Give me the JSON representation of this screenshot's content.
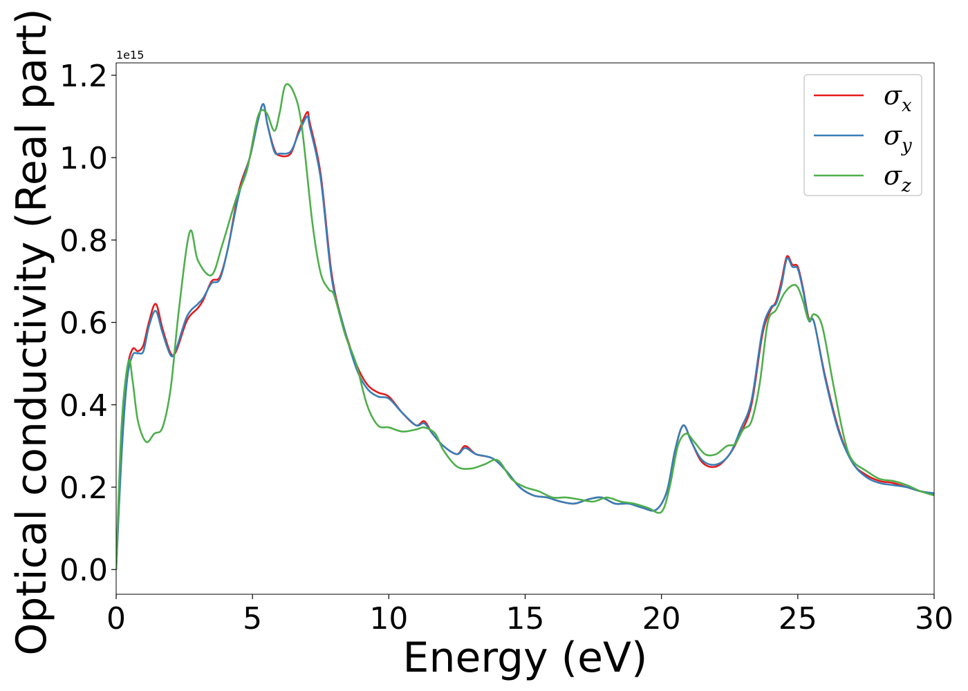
{
  "chart_data": {
    "type": "line",
    "title": "",
    "xlabel": "Energy (eV)",
    "ylabel": "Optical conductivity (Real part)",
    "y_offset_label": "1e15",
    "xlim": [
      0,
      30
    ],
    "ylim": [
      -0.06,
      1.23
    ],
    "xticks": [
      0,
      5,
      10,
      15,
      20,
      25,
      30
    ],
    "xtick_labels": [
      "0",
      "5",
      "10",
      "15",
      "20",
      "25",
      "30"
    ],
    "yticks": [
      0.0,
      0.2,
      0.4,
      0.6,
      0.8,
      1.0,
      1.2
    ],
    "ytick_labels": [
      "0.0",
      "0.2",
      "0.4",
      "0.6",
      "0.8",
      "1.0",
      "1.2"
    ],
    "grid": false,
    "legend_position": "top-right",
    "series": [
      {
        "name": "σ",
        "subscript": "x",
        "color": "#e41a1c",
        "x": [
          0,
          0.2,
          0.4,
          0.6,
          0.8,
          1.0,
          1.2,
          1.45,
          1.7,
          2.0,
          2.2,
          2.6,
          3.0,
          3.2,
          3.5,
          3.8,
          4.1,
          4.5,
          4.9,
          5.2,
          5.4,
          5.55,
          5.8,
          6.0,
          6.4,
          6.7,
          7.0,
          7.1,
          7.5,
          7.9,
          8.3,
          8.8,
          9.2,
          9.6,
          10.0,
          10.5,
          11.0,
          11.3,
          11.6,
          12.0,
          12.5,
          12.8,
          13.2,
          13.8,
          14.3,
          14.8,
          15.3,
          15.8,
          16.3,
          16.8,
          17.3,
          17.8,
          18.3,
          18.8,
          19.3,
          19.8,
          20.2,
          20.5,
          20.8,
          21.1,
          21.5,
          22.0,
          22.5,
          22.9,
          23.3,
          23.7,
          24.0,
          24.2,
          24.4,
          24.6,
          24.8,
          25.0,
          25.2,
          25.4,
          25.6,
          26.0,
          26.5,
          27.0,
          27.5,
          28.0,
          28.5,
          29.0,
          29.5,
          30.0
        ],
        "values": [
          0.0,
          0.3,
          0.48,
          0.535,
          0.53,
          0.545,
          0.6,
          0.645,
          0.585,
          0.525,
          0.53,
          0.605,
          0.635,
          0.655,
          0.7,
          0.71,
          0.78,
          0.92,
          1.0,
          1.09,
          1.13,
          1.08,
          1.02,
          1.005,
          1.01,
          1.065,
          1.11,
          1.085,
          0.96,
          0.72,
          0.6,
          0.5,
          0.45,
          0.43,
          0.42,
          0.38,
          0.35,
          0.36,
          0.33,
          0.3,
          0.28,
          0.3,
          0.28,
          0.27,
          0.24,
          0.2,
          0.18,
          0.175,
          0.165,
          0.16,
          0.17,
          0.175,
          0.16,
          0.16,
          0.15,
          0.145,
          0.19,
          0.29,
          0.35,
          0.31,
          0.26,
          0.25,
          0.28,
          0.33,
          0.4,
          0.57,
          0.63,
          0.65,
          0.7,
          0.76,
          0.74,
          0.735,
          0.68,
          0.61,
          0.6,
          0.47,
          0.34,
          0.26,
          0.23,
          0.215,
          0.21,
          0.2,
          0.19,
          0.185
        ]
      },
      {
        "name": "σ",
        "subscript": "y",
        "color": "#377eb8",
        "x": [
          0,
          0.2,
          0.4,
          0.6,
          0.8,
          1.0,
          1.2,
          1.45,
          1.7,
          2.0,
          2.2,
          2.6,
          3.0,
          3.2,
          3.5,
          3.8,
          4.1,
          4.5,
          4.9,
          5.2,
          5.4,
          5.55,
          5.8,
          6.0,
          6.4,
          6.7,
          7.0,
          7.1,
          7.5,
          7.9,
          8.3,
          8.8,
          9.2,
          9.6,
          10.0,
          10.5,
          11.0,
          11.3,
          11.6,
          12.0,
          12.5,
          12.8,
          13.2,
          13.8,
          14.3,
          14.8,
          15.3,
          15.8,
          16.3,
          16.8,
          17.3,
          17.8,
          18.3,
          18.8,
          19.3,
          19.8,
          20.2,
          20.5,
          20.8,
          21.1,
          21.5,
          22.0,
          22.5,
          22.9,
          23.3,
          23.7,
          24.0,
          24.2,
          24.4,
          24.6,
          24.8,
          25.0,
          25.2,
          25.4,
          25.6,
          26.0,
          26.5,
          27.0,
          27.5,
          28.0,
          28.5,
          29.0,
          29.5,
          30.0
        ],
        "values": [
          0.0,
          0.28,
          0.46,
          0.52,
          0.525,
          0.53,
          0.59,
          0.628,
          0.575,
          0.52,
          0.535,
          0.615,
          0.645,
          0.66,
          0.695,
          0.705,
          0.78,
          0.91,
          1.0,
          1.09,
          1.13,
          1.08,
          1.015,
          1.01,
          1.015,
          1.06,
          1.1,
          1.075,
          0.95,
          0.71,
          0.6,
          0.49,
          0.44,
          0.42,
          0.415,
          0.38,
          0.35,
          0.355,
          0.33,
          0.3,
          0.28,
          0.295,
          0.28,
          0.27,
          0.24,
          0.2,
          0.18,
          0.175,
          0.165,
          0.16,
          0.17,
          0.175,
          0.16,
          0.16,
          0.15,
          0.145,
          0.19,
          0.29,
          0.35,
          0.31,
          0.265,
          0.255,
          0.28,
          0.34,
          0.41,
          0.58,
          0.635,
          0.645,
          0.69,
          0.755,
          0.735,
          0.73,
          0.675,
          0.605,
          0.6,
          0.465,
          0.335,
          0.26,
          0.225,
          0.21,
          0.205,
          0.2,
          0.19,
          0.185
        ]
      },
      {
        "name": "σ",
        "subscript": "z",
        "color": "#4daf4a",
        "x": [
          0,
          0.2,
          0.45,
          0.6,
          0.8,
          1.1,
          1.4,
          1.7,
          2.0,
          2.3,
          2.7,
          3.0,
          3.5,
          3.9,
          4.4,
          4.8,
          5.2,
          5.5,
          5.8,
          6.0,
          6.2,
          6.5,
          6.8,
          7.2,
          7.5,
          7.8,
          8.0,
          8.4,
          8.8,
          9.2,
          9.6,
          10.0,
          10.5,
          11.0,
          11.3,
          11.7,
          12.0,
          12.5,
          13.0,
          13.5,
          14.0,
          14.5,
          15.0,
          15.5,
          16.0,
          16.5,
          17.0,
          17.5,
          18.0,
          18.5,
          19.0,
          19.5,
          20.0,
          20.3,
          20.6,
          20.9,
          21.2,
          21.6,
          22.0,
          22.4,
          22.7,
          23.0,
          23.3,
          23.6,
          23.9,
          24.2,
          24.5,
          24.8,
          25.0,
          25.2,
          25.4,
          25.6,
          25.9,
          26.3,
          26.7,
          27.0,
          27.5,
          28.0,
          28.5,
          29.0,
          29.5,
          30.0
        ],
        "values": [
          0.0,
          0.35,
          0.505,
          0.46,
          0.36,
          0.31,
          0.33,
          0.345,
          0.44,
          0.63,
          0.82,
          0.75,
          0.715,
          0.79,
          0.9,
          0.97,
          1.1,
          1.11,
          1.065,
          1.11,
          1.175,
          1.16,
          1.08,
          0.84,
          0.72,
          0.68,
          0.665,
          0.57,
          0.5,
          0.4,
          0.35,
          0.345,
          0.335,
          0.34,
          0.345,
          0.33,
          0.29,
          0.25,
          0.245,
          0.255,
          0.265,
          0.22,
          0.2,
          0.19,
          0.175,
          0.175,
          0.17,
          0.165,
          0.175,
          0.165,
          0.16,
          0.15,
          0.14,
          0.2,
          0.3,
          0.33,
          0.31,
          0.28,
          0.28,
          0.3,
          0.305,
          0.34,
          0.36,
          0.45,
          0.6,
          0.63,
          0.67,
          0.69,
          0.685,
          0.65,
          0.605,
          0.62,
          0.59,
          0.45,
          0.32,
          0.265,
          0.24,
          0.22,
          0.215,
          0.205,
          0.19,
          0.18
        ]
      }
    ]
  }
}
